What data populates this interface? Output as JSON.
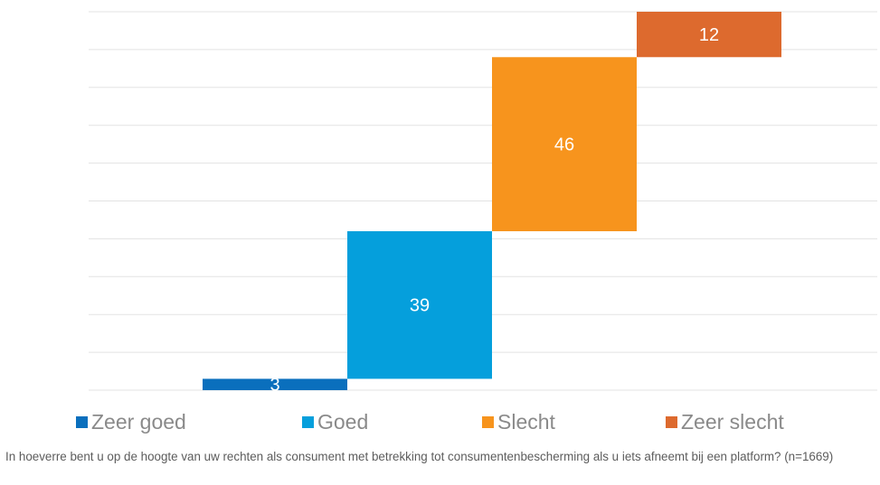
{
  "chart_data": {
    "type": "bar",
    "subtype": "waterfall",
    "categories": [
      "Zeer goed",
      "Goed",
      "Slecht",
      "Zeer slecht"
    ],
    "values": [
      3,
      39,
      46,
      12
    ],
    "colors": [
      "#0a6fbd",
      "#059fdc",
      "#f7941d",
      "#dd6a2e"
    ],
    "ylim": [
      0,
      100
    ],
    "grid": true,
    "legend_position": "bottom",
    "title": "",
    "xlabel": "",
    "ylabel": ""
  },
  "caption": "In hoeverre bent u op de hoogte van uw rechten als consument met betrekking tot consumentenbescherming als u iets afneemt bij een platform? (n=1669)"
}
